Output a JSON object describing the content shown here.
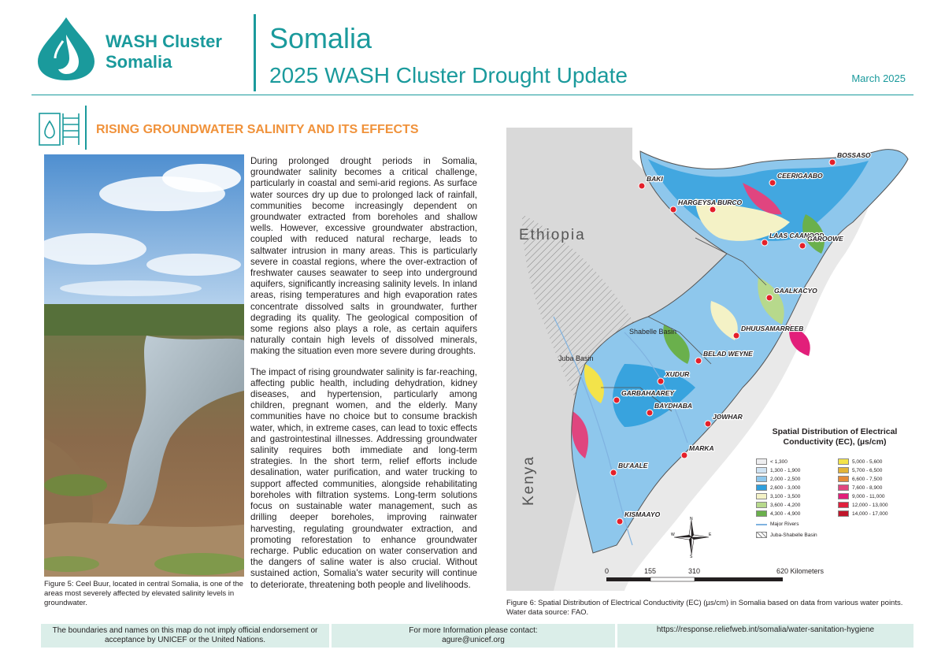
{
  "header": {
    "logo_line1": "WASH Cluster",
    "logo_line2": "Somalia",
    "title": "Somalia",
    "subtitle": "2025 WASH Cluster Drought Update",
    "date": "March 2025"
  },
  "section": {
    "title": "RISING GROUNDWATER SALINITY AND ITS EFFECTS"
  },
  "photo": {
    "caption": "Figure 5: Ceel Buur, located in central Somalia, is one of the areas most severely affected by elevated salinity levels in groundwater."
  },
  "body": {
    "paragraph1": "During prolonged drought periods in Somalia, groundwater salinity becomes a critical challenge, particularly in coastal and semi-arid regions. As surface water sources dry up due to prolonged lack of rainfall, communities become increasingly dependent on groundwater extracted from boreholes and shallow wells. However, excessive groundwater abstraction, coupled with reduced natural recharge, leads to saltwater intrusion in many areas. This is particularly severe in coastal regions, where the over-extraction of freshwater causes seawater to seep into underground aquifers, significantly increasing salinity levels. In inland areas, rising temperatures and high evaporation rates concentrate dissolved salts in groundwater, further degrading its quality. The geological composition of some regions also plays a role, as certain aquifers naturally contain high levels of dissolved minerals, making the situation even more severe during droughts.",
    "paragraph2": "The impact of rising groundwater salinity is far-reaching, affecting public health, including dehydration, kidney diseases, and hypertension, particularly among children, pregnant women, and the elderly. Many communities have no choice but to consume brackish water, which, in extreme cases, can lead to toxic effects and gastrointestinal illnesses. Addressing groundwater salinity requires both immediate and long-term strategies. In the short term, relief efforts include desalination, water purification, and water trucking to support affected communities, alongside rehabilitating boreholes with filtration systems. Long-term solutions focus on sustainable water management, such as drilling deeper boreholes, improving rainwater harvesting, regulating groundwater extraction, and promoting reforestation to enhance groundwater recharge. Public education on water conservation and the dangers of saline water is also crucial. Without sustained action, Somalia's water security will continue to deteriorate, threatening both people and livelihoods."
  },
  "map": {
    "country_labels": {
      "ethiopia": "Ethiopia",
      "kenya": "Kenya"
    },
    "basin_labels": {
      "shabelle": "Shabelle Basin",
      "juba": "Juba Basin"
    },
    "cities": [
      {
        "name": "BOSSASO"
      },
      {
        "name": "CEERIGAABO"
      },
      {
        "name": "BAKI"
      },
      {
        "name": "HARGEYSA"
      },
      {
        "name": "BURCO"
      },
      {
        "name": "LAAS CAANOOD"
      },
      {
        "name": "GAROOWE"
      },
      {
        "name": "GAALKACYO"
      },
      {
        "name": "DHUUSAMARREEB"
      },
      {
        "name": "BELAD WEYNE"
      },
      {
        "name": "XUDUR"
      },
      {
        "name": "GARBAHAAREY"
      },
      {
        "name": "BAYDHABA"
      },
      {
        "name": "JOWHAR"
      },
      {
        "name": "MARKA"
      },
      {
        "name": "BU'AALE"
      },
      {
        "name": "KISMAAYO"
      }
    ],
    "legend": {
      "title_line1": "Spatial Distribution of Electrical",
      "title_line2": "Conductivity  (EC), (µs/cm)",
      "classes": [
        {
          "label": "< 1,300",
          "color": "#eeeef0"
        },
        {
          "label": "5,000 - 5,600",
          "color": "#f3e34a"
        },
        {
          "label": "1,300 - 1,900",
          "color": "#cfe3f3"
        },
        {
          "label": "5,700 - 6,500",
          "color": "#e3b43a"
        },
        {
          "label": "2,000 - 2,500",
          "color": "#8ec7ec"
        },
        {
          "label": "6,600 - 7,500",
          "color": "#e58a3a"
        },
        {
          "label": "2,600 - 3,000",
          "color": "#2f9fdd"
        },
        {
          "label": "7,600 - 8,900",
          "color": "#e0457f"
        },
        {
          "label": "3,100 - 3,500",
          "color": "#f4f2c6"
        },
        {
          "label": "9,000 - 11,000",
          "color": "#e21f7a"
        },
        {
          "label": "3,600 - 4,200",
          "color": "#b7d98c"
        },
        {
          "label": "12,000 - 13,000",
          "color": "#e0203d"
        },
        {
          "label": "4,300 - 4,900",
          "color": "#6ab04c"
        },
        {
          "label": "14,000 - 17,000",
          "color": "#c0162b"
        }
      ],
      "rivers_label": "Major Rivers",
      "basin_label": "Juba-Shabelle Basin"
    },
    "compass": {
      "n": "N",
      "s": "S",
      "e": "E",
      "w": "W"
    },
    "scale": {
      "ticks": [
        "0",
        "155",
        "310",
        "620 Kilometers"
      ]
    },
    "caption": "Figure 6: Spatial Distribution of Electrical Conductivity (EC) (µs/cm) in Somalia based on data from various water points. Water data source: FAO."
  },
  "footer": {
    "disclaimer": "The boundaries and names on this map do not imply official endorsement or acceptance by UNICEF or the United Nations.",
    "contact_line1": "For more Information please contact:",
    "contact_line2": "agure@unicef.org",
    "link": "https://response.reliefweb.int/somalia/water-sanitation-hygiene"
  },
  "colors": {
    "teal": "#1a9a9c",
    "orange": "#f0923b",
    "footer_bg": "#dbeee9",
    "city_marker": "#e4202a"
  }
}
